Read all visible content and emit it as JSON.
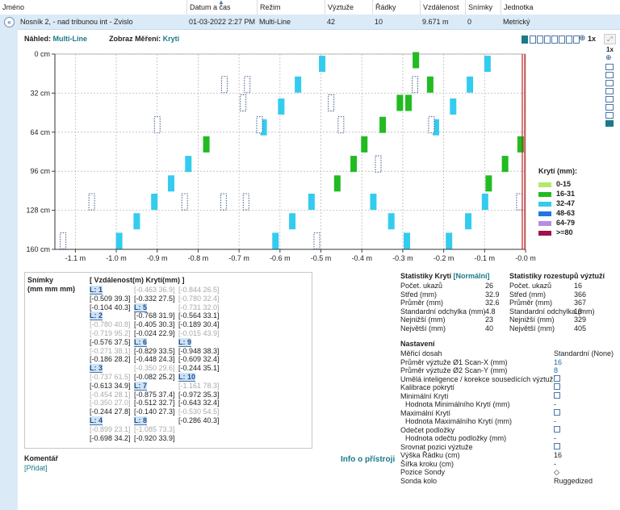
{
  "table": {
    "headers": [
      "Jméno",
      "Datum a čas",
      "Režim",
      "Výztuže",
      "Řádky",
      "Vzdálenost",
      "Snímky",
      "Jednotka"
    ],
    "row": [
      "Nosník 2, - nad tribunou int - Zvislo",
      "01-03-2022 2:27 PM",
      "Multi-Line",
      "42",
      "10",
      "9.671 m",
      "0",
      "Metrický"
    ]
  },
  "view": {
    "label_preview": "Náhled:",
    "preview_value": "Multi-Line",
    "label_display": "Zobraz Měření:",
    "display_value": "Krytí",
    "zoom_label": "1x",
    "side_zoom_label": "1x"
  },
  "chart_data": {
    "type": "scatter",
    "xlabel": "",
    "ylabel": "",
    "xlim": [
      -1.15,
      0.0
    ],
    "ylim": [
      0,
      160
    ],
    "x_ticks": [
      "-1.1 m",
      "-1.0 m",
      "-0.9 m",
      "-0.8 m",
      "-0.7 m",
      "-0.6 m",
      "-0.5 m",
      "-0.4 m",
      "-0.3 m",
      "-0.2 m",
      "-0.1 m",
      "-0.0 m"
    ],
    "x_tick_values": [
      -1.1,
      -1.0,
      -0.9,
      -0.8,
      -0.7,
      -0.6,
      -0.5,
      -0.4,
      -0.3,
      -0.2,
      -0.1,
      0.0
    ],
    "y_ticks": [
      "0 cm",
      "32 cm",
      "64 cm",
      "96 cm",
      "128 cm",
      "160 cm"
    ],
    "y_tick_values": [
      0,
      32,
      64,
      96,
      128,
      160
    ],
    "bars": [
      {
        "x": -0.497,
        "y": 8,
        "c": "cyan"
      },
      {
        "x": -0.093,
        "y": 8,
        "c": "cyan"
      },
      {
        "x": -0.556,
        "y": 25,
        "c": "cyan"
      },
      {
        "x": -0.136,
        "y": 25,
        "c": "cyan"
      },
      {
        "x": -0.597,
        "y": 43,
        "c": "cyan"
      },
      {
        "x": -0.177,
        "y": 43,
        "c": "cyan"
      },
      {
        "x": -0.64,
        "y": 60,
        "c": "cyan"
      },
      {
        "x": -0.219,
        "y": 60,
        "c": "cyan"
      },
      {
        "x": -0.824,
        "y": 90,
        "c": "cyan"
      },
      {
        "x": -0.866,
        "y": 106,
        "c": "cyan"
      },
      {
        "x": -0.907,
        "y": 121,
        "c": "cyan"
      },
      {
        "x": -0.523,
        "y": 121,
        "c": "cyan"
      },
      {
        "x": -0.099,
        "y": 121,
        "c": "cyan"
      },
      {
        "x": -0.95,
        "y": 137,
        "c": "cyan"
      },
      {
        "x": -0.57,
        "y": 137,
        "c": "cyan"
      },
      {
        "x": -0.14,
        "y": 137,
        "c": "cyan"
      },
      {
        "x": -0.993,
        "y": 153,
        "c": "cyan"
      },
      {
        "x": -0.611,
        "y": 153,
        "c": "cyan"
      },
      {
        "x": -0.187,
        "y": 153,
        "c": "cyan"
      },
      {
        "x": -0.29,
        "y": 153,
        "c": "cyan"
      },
      {
        "x": -0.328,
        "y": 137,
        "c": "cyan"
      },
      {
        "x": -0.372,
        "y": 121,
        "c": "cyan"
      },
      {
        "x": -0.268,
        "y": 5,
        "c": "green"
      },
      {
        "x": -0.233,
        "y": 25,
        "c": "green"
      },
      {
        "x": -0.307,
        "y": 40,
        "c": "green"
      },
      {
        "x": -0.286,
        "y": 40,
        "c": "green"
      },
      {
        "x": -0.349,
        "y": 58,
        "c": "green"
      },
      {
        "x": -0.394,
        "y": 74,
        "c": "green"
      },
      {
        "x": -0.78,
        "y": 74,
        "c": "green"
      },
      {
        "x": -0.012,
        "y": 74,
        "c": "green"
      },
      {
        "x": -0.05,
        "y": 90,
        "c": "green"
      },
      {
        "x": -0.09,
        "y": 106,
        "c": "green"
      },
      {
        "x": -0.42,
        "y": 90,
        "c": "green"
      },
      {
        "x": -0.46,
        "y": 106,
        "c": "green"
      }
    ],
    "dashed": [
      {
        "x": -0.736,
        "y": 25
      },
      {
        "x": -0.68,
        "y": 25
      },
      {
        "x": -0.27,
        "y": 25
      },
      {
        "x": -0.69,
        "y": 40
      },
      {
        "x": -0.475,
        "y": 40
      },
      {
        "x": -0.9,
        "y": 58
      },
      {
        "x": -0.65,
        "y": 58
      },
      {
        "x": -0.451,
        "y": 58
      },
      {
        "x": -0.23,
        "y": 58
      },
      {
        "x": -0.36,
        "y": 90
      },
      {
        "x": -1.06,
        "y": 121
      },
      {
        "x": -0.833,
        "y": 121
      },
      {
        "x": -0.738,
        "y": 121
      },
      {
        "x": -0.683,
        "y": 121
      },
      {
        "x": -0.015,
        "y": 121
      },
      {
        "x": -1.13,
        "y": 153
      },
      {
        "x": -0.51,
        "y": 153
      }
    ]
  },
  "legend": {
    "title": "Krytí (mm):",
    "items": [
      {
        "label": "0-15",
        "color": "#b4e86a"
      },
      {
        "label": "16-31",
        "color": "#22bb22"
      },
      {
        "label": "32-47",
        "color": "#33ccee"
      },
      {
        "label": "48-63",
        "color": "#1f77e0"
      },
      {
        "label": "64-79",
        "color": "#b58ee0"
      },
      {
        "label": ">=80",
        "color": "#a0104a"
      }
    ]
  },
  "scans": {
    "label": "Snímky",
    "unit": "(mm mm mm)",
    "col_header": "[ Vzdálenost(m)  Krytí(mm) ]",
    "col1": [
      {
        "t": "L: 1",
        "k": "hdr"
      },
      {
        "t": "[-0.509  39.3]",
        "k": "n"
      },
      {
        "t": "[-0.104  40.3]",
        "k": "n"
      },
      {
        "t": "L: 2",
        "k": "hdr"
      },
      {
        "t": "[-0.780  40.8]",
        "k": "g"
      },
      {
        "t": "[-0.719  95.2]",
        "k": "g"
      },
      {
        "t": "[-0.576  37.5]",
        "k": "n"
      },
      {
        "t": "[-0.271  38.1]",
        "k": "g"
      },
      {
        "t": "[-0.186  28.2]",
        "k": "n"
      },
      {
        "t": "L: 3",
        "k": "hdr"
      },
      {
        "t": "[-0.737  61.5]",
        "k": "g"
      },
      {
        "t": "[-0.613  34.9]",
        "k": "n"
      },
      {
        "t": "[-0.454  28.1]",
        "k": "g"
      },
      {
        "t": "[-0.350  27.0]",
        "k": "g"
      },
      {
        "t": "[-0.244  27.8]",
        "k": "n"
      },
      {
        "t": "L: 4",
        "k": "hdr"
      },
      {
        "t": "[-0.899  23.1]",
        "k": "g"
      },
      {
        "t": "[-0.698  34.2]",
        "k": "n"
      }
    ],
    "col2": [
      {
        "t": "[-0.463  36.9]",
        "k": "g"
      },
      {
        "t": "[-0.332  27.5]",
        "k": "n"
      },
      {
        "t": "L: 5",
        "k": "hdr"
      },
      {
        "t": "[-0.768  31.9]",
        "k": "n"
      },
      {
        "t": "[-0.405  30.3]",
        "k": "n"
      },
      {
        "t": "[-0.024  22.9]",
        "k": "n"
      },
      {
        "t": "L: 6",
        "k": "hdr"
      },
      {
        "t": "[-0.829  33.5]",
        "k": "n"
      },
      {
        "t": "[-0.448  24.3]",
        "k": "n"
      },
      {
        "t": "[-0.350  29.6]",
        "k": "g"
      },
      {
        "t": "[-0.082  25.2]",
        "k": "n"
      },
      {
        "t": "L: 7",
        "k": "hdr"
      },
      {
        "t": "[-0.875  37.4]",
        "k": "n"
      },
      {
        "t": "[-0.512  32.7]",
        "k": "n"
      },
      {
        "t": "[-0.140  27.3]",
        "k": "n"
      },
      {
        "t": "L: 8",
        "k": "hdr"
      },
      {
        "t": "[-1.085  73.3]",
        "k": "g"
      },
      {
        "t": "[-0.920  33.9]",
        "k": "n"
      }
    ],
    "col3": [
      {
        "t": "[-0.844  26.5]",
        "k": "g"
      },
      {
        "t": "[-0.780  32.4]",
        "k": "g"
      },
      {
        "t": "[-0.731  32.0]",
        "k": "g"
      },
      {
        "t": "[-0.564  33.1]",
        "k": "n"
      },
      {
        "t": "[-0.189  30.4]",
        "k": "n"
      },
      {
        "t": "[-0.015  43.9]",
        "k": "g"
      },
      {
        "t": "L: 9",
        "k": "hdr"
      },
      {
        "t": "[-0.948  38.3]",
        "k": "n"
      },
      {
        "t": "[-0.609  32.4]",
        "k": "n"
      },
      {
        "t": "[-0.244  35.1]",
        "k": "n"
      },
      {
        "t": "L: 10",
        "k": "hdr"
      },
      {
        "t": "[-1.161  78.3]",
        "k": "g"
      },
      {
        "t": "[-0.972  35.3]",
        "k": "n"
      },
      {
        "t": "[-0.643  32.4]",
        "k": "n"
      },
      {
        "t": "[-0.530  54.5]",
        "k": "g"
      },
      {
        "t": "[-0.286  40.3]",
        "k": "n"
      }
    ]
  },
  "comment": {
    "label": "Komentář",
    "add": "[Přidat]"
  },
  "device_info": "Info o přístroji",
  "stats_cover": {
    "title_prefix": "Statistiky Krytí ",
    "title_mode": "[Normální]",
    "rows": [
      {
        "k": "Počet. ukazů",
        "v": "26"
      },
      {
        "k": "Střed (mm)",
        "v": "32.9"
      },
      {
        "k": "Průměr (mm)",
        "v": "32.6"
      },
      {
        "k": "Standardní odchylka (mm)",
        "v": "4.8"
      },
      {
        "k": "Nejnižší (mm)",
        "v": "23"
      },
      {
        "k": "Největší (mm)",
        "v": "40"
      }
    ]
  },
  "stats_spacing": {
    "title": "Statistiky rozestupů výztuží",
    "rows": [
      {
        "k": "Počet. ukazů",
        "v": "16"
      },
      {
        "k": "Střed (mm)",
        "v": "366"
      },
      {
        "k": "Průměr (mm)",
        "v": "367"
      },
      {
        "k": "Standardní odchylka (mm)",
        "v": "18"
      },
      {
        "k": "Nejnižší (mm)",
        "v": "329"
      },
      {
        "k": "Největší (mm)",
        "v": "405"
      }
    ]
  },
  "settings": {
    "title": "Nastavení",
    "rows": [
      {
        "k": "Měřicí dosah",
        "v": "Standardní (None)",
        "t": "text"
      },
      {
        "k": "Průměr výztuže Ø1 Scan-X (mm)",
        "v": "16",
        "t": "blue"
      },
      {
        "k": "Průměr výztuže Ø2 Scan-Y (mm)",
        "v": "8",
        "t": "blue"
      },
      {
        "k": "Umělá inteligence / korekce sousedících výztuží",
        "v": "",
        "t": "box"
      },
      {
        "k": "Kalibrace pokrytí",
        "v": "",
        "t": "box"
      },
      {
        "k": "Minimální Krytí",
        "v": "",
        "t": "box"
      },
      {
        "k": "Hodnota Minimálního Krytí (mm)",
        "v": "-",
        "t": "indent"
      },
      {
        "k": "Maximální Krytí",
        "v": "",
        "t": "box"
      },
      {
        "k": "Hodnota Maximálního Krytí (mm)",
        "v": "-",
        "t": "indent"
      },
      {
        "k": "Odečet podložky",
        "v": "",
        "t": "box"
      },
      {
        "k": "Hodnota  odečtu podložky (mm)",
        "v": "-",
        "t": "indent"
      },
      {
        "k": "Srovnat pozici výztuže",
        "v": "",
        "t": "box"
      },
      {
        "k": "Výška Řádku (cm)",
        "v": "16",
        "t": "text"
      },
      {
        "k": "Šířka kroku (cm)",
        "v": "-",
        "t": "text"
      },
      {
        "k": "Pozice Sondy",
        "v": "◇",
        "t": "text"
      },
      {
        "k": "Sonda kolo",
        "v": "Ruggedized",
        "t": "text"
      }
    ]
  }
}
